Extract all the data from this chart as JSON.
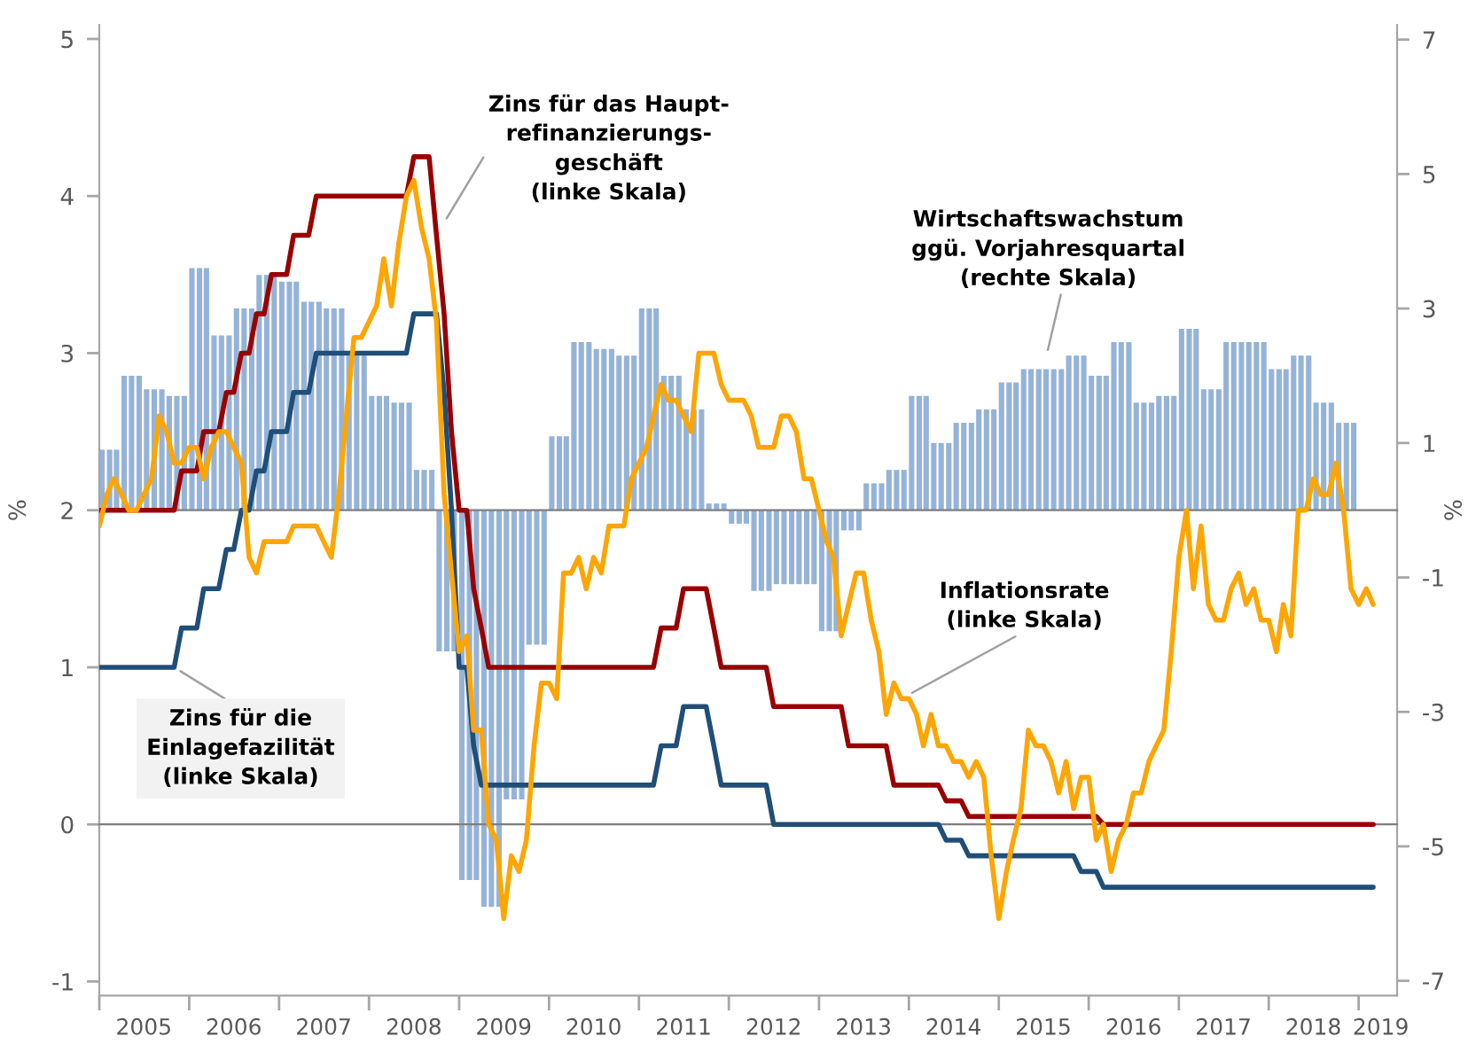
{
  "chart_data": {
    "type": "line",
    "x": [
      "2005-01",
      "2005-02",
      "2005-03",
      "2005-04",
      "2005-05",
      "2005-06",
      "2005-07",
      "2005-08",
      "2005-09",
      "2005-10",
      "2005-11",
      "2005-12",
      "2006-01",
      "2006-02",
      "2006-03",
      "2006-04",
      "2006-05",
      "2006-06",
      "2006-07",
      "2006-08",
      "2006-09",
      "2006-10",
      "2006-11",
      "2006-12",
      "2007-01",
      "2007-02",
      "2007-03",
      "2007-04",
      "2007-05",
      "2007-06",
      "2007-07",
      "2007-08",
      "2007-09",
      "2007-10",
      "2007-11",
      "2007-12",
      "2008-01",
      "2008-02",
      "2008-03",
      "2008-04",
      "2008-05",
      "2008-06",
      "2008-07",
      "2008-08",
      "2008-09",
      "2008-10",
      "2008-11",
      "2008-12",
      "2009-01",
      "2009-02",
      "2009-03",
      "2009-04",
      "2009-05",
      "2009-06",
      "2009-07",
      "2009-08",
      "2009-09",
      "2009-10",
      "2009-11",
      "2009-12",
      "2010-01",
      "2010-02",
      "2010-03",
      "2010-04",
      "2010-05",
      "2010-06",
      "2010-07",
      "2010-08",
      "2010-09",
      "2010-10",
      "2010-11",
      "2010-12",
      "2011-01",
      "2011-02",
      "2011-03",
      "2011-04",
      "2011-05",
      "2011-06",
      "2011-07",
      "2011-08",
      "2011-09",
      "2011-10",
      "2011-11",
      "2011-12",
      "2012-01",
      "2012-02",
      "2012-03",
      "2012-04",
      "2012-05",
      "2012-06",
      "2012-07",
      "2012-08",
      "2012-09",
      "2012-10",
      "2012-11",
      "2012-12",
      "2013-01",
      "2013-02",
      "2013-03",
      "2013-04",
      "2013-05",
      "2013-06",
      "2013-07",
      "2013-08",
      "2013-09",
      "2013-10",
      "2013-11",
      "2013-12",
      "2014-01",
      "2014-02",
      "2014-03",
      "2014-04",
      "2014-05",
      "2014-06",
      "2014-07",
      "2014-08",
      "2014-09",
      "2014-10",
      "2014-11",
      "2014-12",
      "2015-01",
      "2015-02",
      "2015-03",
      "2015-04",
      "2015-05",
      "2015-06",
      "2015-07",
      "2015-08",
      "2015-09",
      "2015-10",
      "2015-11",
      "2015-12",
      "2016-01",
      "2016-02",
      "2016-03",
      "2016-04",
      "2016-05",
      "2016-06",
      "2016-07",
      "2016-08",
      "2016-09",
      "2016-10",
      "2016-11",
      "2016-12",
      "2017-01",
      "2017-02",
      "2017-03",
      "2017-04",
      "2017-05",
      "2017-06",
      "2017-07",
      "2017-08",
      "2017-09",
      "2017-10",
      "2017-11",
      "2017-12",
      "2018-01",
      "2018-02",
      "2018-03",
      "2018-04",
      "2018-05",
      "2018-06",
      "2018-07",
      "2018-08",
      "2018-09",
      "2018-10",
      "2018-11",
      "2018-12",
      "2019-01",
      "2019-02",
      "2019-03"
    ],
    "series": [
      {
        "type": "bar",
        "axis": "y2",
        "name": "Wirtschaftswachstum\nggü. Vorjahresquartal\n(rechte Skala)",
        "color": "#95b3d7",
        "values": [
          0.9,
          0.9,
          0.9,
          2.0,
          2.0,
          2.0,
          1.8,
          1.8,
          1.8,
          1.7,
          1.7,
          1.7,
          3.6,
          3.6,
          3.6,
          2.6,
          2.6,
          2.6,
          3.0,
          3.0,
          3.0,
          3.5,
          3.5,
          3.5,
          3.4,
          3.4,
          3.4,
          3.1,
          3.1,
          3.1,
          3.0,
          3.0,
          3.0,
          2.3,
          2.3,
          2.3,
          1.7,
          1.7,
          1.7,
          1.6,
          1.6,
          1.6,
          0.6,
          0.6,
          0.6,
          -2.1,
          -2.1,
          -2.1,
          -5.5,
          -5.5,
          -5.5,
          -5.9,
          -5.9,
          -5.9,
          -4.3,
          -4.3,
          -4.3,
          -2.0,
          -2.0,
          -2.0,
          1.1,
          1.1,
          1.1,
          2.5,
          2.5,
          2.5,
          2.4,
          2.4,
          2.4,
          2.3,
          2.3,
          2.3,
          3.0,
          3.0,
          3.0,
          2.0,
          2.0,
          2.0,
          1.5,
          1.5,
          1.5,
          0.1,
          0.1,
          0.1,
          -0.2,
          -0.2,
          -0.2,
          -1.2,
          -1.2,
          -1.2,
          -1.1,
          -1.1,
          -1.1,
          -1.1,
          -1.1,
          -1.1,
          -1.8,
          -1.8,
          -1.8,
          -0.3,
          -0.3,
          -0.3,
          0.4,
          0.4,
          0.4,
          0.6,
          0.6,
          0.6,
          1.7,
          1.7,
          1.7,
          1.0,
          1.0,
          1.0,
          1.3,
          1.3,
          1.3,
          1.5,
          1.5,
          1.5,
          1.9,
          1.9,
          1.9,
          2.1,
          2.1,
          2.1,
          2.1,
          2.1,
          2.1,
          2.3,
          2.3,
          2.3,
          2.0,
          2.0,
          2.0,
          2.5,
          2.5,
          2.5,
          1.6,
          1.6,
          1.6,
          1.7,
          1.7,
          1.7,
          2.7,
          2.7,
          2.7,
          1.8,
          1.8,
          1.8,
          2.5,
          2.5,
          2.5,
          2.5,
          2.5,
          2.5,
          2.1,
          2.1,
          2.1,
          2.3,
          2.3,
          2.3,
          1.6,
          1.6,
          1.6,
          1.3,
          1.3,
          1.3,
          null,
          null,
          null
        ]
      },
      {
        "axis": "y",
        "name": "Zins für das Haupt-\nrefinanzierungs-\ngeschäft\n(linke Skala)",
        "color": "#990000",
        "values": [
          2,
          2,
          2,
          2,
          2,
          2,
          2,
          2,
          2,
          2,
          2,
          2.25,
          2.25,
          2.25,
          2.5,
          2.5,
          2.5,
          2.75,
          2.75,
          3,
          3,
          3.25,
          3.25,
          3.5,
          3.5,
          3.5,
          3.75,
          3.75,
          3.75,
          4,
          4,
          4,
          4,
          4,
          4,
          4,
          4,
          4,
          4,
          4,
          4,
          4,
          4.25,
          4.25,
          4.25,
          3.75,
          3.25,
          2.5,
          2,
          2,
          1.5,
          1.25,
          1,
          1,
          1,
          1,
          1,
          1,
          1,
          1,
          1,
          1,
          1,
          1,
          1,
          1,
          1,
          1,
          1,
          1,
          1,
          1,
          1,
          1,
          1,
          1.25,
          1.25,
          1.25,
          1.5,
          1.5,
          1.5,
          1.5,
          1.25,
          1,
          1,
          1,
          1,
          1,
          1,
          1,
          0.75,
          0.75,
          0.75,
          0.75,
          0.75,
          0.75,
          0.75,
          0.75,
          0.75,
          0.75,
          0.5,
          0.5,
          0.5,
          0.5,
          0.5,
          0.5,
          0.25,
          0.25,
          0.25,
          0.25,
          0.25,
          0.25,
          0.25,
          0.15,
          0.15,
          0.15,
          0.05,
          0.05,
          0.05,
          0.05,
          0.05,
          0.05,
          0.05,
          0.05,
          0.05,
          0.05,
          0.05,
          0.05,
          0.05,
          0.05,
          0.05,
          0.05,
          0.05,
          0.05,
          0,
          0,
          0,
          0,
          0,
          0,
          0,
          0,
          0,
          0,
          0,
          0,
          0,
          0,
          0,
          0,
          0,
          0,
          0,
          0,
          0,
          0,
          0,
          0,
          0,
          0,
          0,
          0,
          0,
          0,
          0,
          0,
          0,
          0,
          0,
          0,
          0
        ]
      },
      {
        "axis": "y",
        "name": "Zins für die\nEinlagefazilität\n(linke Skala)",
        "color": "#1f4e79",
        "values": [
          1,
          1,
          1,
          1,
          1,
          1,
          1,
          1,
          1,
          1,
          1,
          1.25,
          1.25,
          1.25,
          1.5,
          1.5,
          1.5,
          1.75,
          1.75,
          2,
          2,
          2.25,
          2.25,
          2.5,
          2.5,
          2.5,
          2.75,
          2.75,
          2.75,
          3,
          3,
          3,
          3,
          3,
          3,
          3,
          3,
          3,
          3,
          3,
          3,
          3,
          3.25,
          3.25,
          3.25,
          3.25,
          2.75,
          2,
          1,
          1,
          0.5,
          0.25,
          0.25,
          0.25,
          0.25,
          0.25,
          0.25,
          0.25,
          0.25,
          0.25,
          0.25,
          0.25,
          0.25,
          0.25,
          0.25,
          0.25,
          0.25,
          0.25,
          0.25,
          0.25,
          0.25,
          0.25,
          0.25,
          0.25,
          0.25,
          0.5,
          0.5,
          0.5,
          0.75,
          0.75,
          0.75,
          0.75,
          0.5,
          0.25,
          0.25,
          0.25,
          0.25,
          0.25,
          0.25,
          0.25,
          0,
          0,
          0,
          0,
          0,
          0,
          0,
          0,
          0,
          0,
          0,
          0,
          0,
          0,
          0,
          0,
          0,
          0,
          0,
          0,
          0,
          0,
          0,
          -0.1,
          -0.1,
          -0.1,
          -0.2,
          -0.2,
          -0.2,
          -0.2,
          -0.2,
          -0.2,
          -0.2,
          -0.2,
          -0.2,
          -0.2,
          -0.2,
          -0.2,
          -0.2,
          -0.2,
          -0.2,
          -0.3,
          -0.3,
          -0.3,
          -0.4,
          -0.4,
          -0.4,
          -0.4,
          -0.4,
          -0.4,
          -0.4,
          -0.4,
          -0.4,
          -0.4,
          -0.4,
          -0.4,
          -0.4,
          -0.4,
          -0.4,
          -0.4,
          -0.4,
          -0.4,
          -0.4,
          -0.4,
          -0.4,
          -0.4,
          -0.4,
          -0.4,
          -0.4,
          -0.4,
          -0.4,
          -0.4,
          -0.4,
          -0.4,
          -0.4,
          -0.4,
          -0.4,
          -0.4,
          -0.4,
          -0.4,
          -0.4
        ]
      },
      {
        "axis": "y",
        "name": "Inflationsrate\n(linke Skala)",
        "color": "#ffa500",
        "values": [
          1.9,
          2.1,
          2.2,
          2.1,
          2.0,
          2.0,
          2.1,
          2.2,
          2.6,
          2.5,
          2.3,
          2.3,
          2.4,
          2.4,
          2.2,
          2.4,
          2.5,
          2.5,
          2.4,
          2.3,
          1.7,
          1.6,
          1.8,
          1.8,
          1.8,
          1.8,
          1.9,
          1.9,
          1.9,
          1.9,
          1.8,
          1.7,
          2.1,
          2.6,
          3.1,
          3.1,
          3.2,
          3.3,
          3.6,
          3.3,
          3.7,
          4.0,
          4.1,
          3.8,
          3.6,
          3.2,
          2.1,
          1.6,
          1.1,
          1.2,
          0.6,
          0.6,
          0.0,
          -0.1,
          -0.6,
          -0.2,
          -0.3,
          -0.1,
          0.5,
          0.9,
          0.9,
          0.8,
          1.6,
          1.6,
          1.7,
          1.5,
          1.7,
          1.6,
          1.9,
          1.9,
          1.9,
          2.2,
          2.3,
          2.4,
          2.6,
          2.8,
          2.7,
          2.7,
          2.6,
          2.5,
          3.0,
          3.0,
          3.0,
          2.8,
          2.7,
          2.7,
          2.7,
          2.6,
          2.4,
          2.4,
          2.4,
          2.6,
          2.6,
          2.5,
          2.2,
          2.2,
          2.0,
          1.8,
          1.7,
          1.2,
          1.4,
          1.6,
          1.6,
          1.3,
          1.1,
          0.7,
          0.9,
          0.8,
          0.8,
          0.7,
          0.5,
          0.7,
          0.5,
          0.5,
          0.4,
          0.4,
          0.3,
          0.4,
          0.3,
          -0.2,
          -0.6,
          -0.3,
          -0.1,
          0.1,
          0.6,
          0.5,
          0.5,
          0.4,
          0.2,
          0.4,
          0.1,
          0.3,
          0.3,
          -0.1,
          0.0,
          -0.3,
          -0.1,
          0.0,
          0.2,
          0.2,
          0.4,
          0.5,
          0.6,
          1.1,
          1.7,
          2.0,
          1.5,
          1.9,
          1.4,
          1.3,
          1.3,
          1.5,
          1.6,
          1.4,
          1.5,
          1.3,
          1.3,
          1.1,
          1.4,
          1.2,
          2.0,
          2.0,
          2.2,
          2.1,
          2.1,
          2.3,
          2.0,
          1.5,
          1.4,
          1.5,
          1.4
        ]
      }
    ],
    "xlim": [
      "2005-01",
      "2019-06-06"
    ],
    "xticks": [
      {
        "value": "2005-01",
        "label": null
      },
      {
        "value": "2006-01",
        "label": null
      },
      {
        "value": "2007-01",
        "label": null
      },
      {
        "value": "2008-01",
        "label": null
      },
      {
        "value": "2009-01",
        "label": null
      },
      {
        "value": "2010-01",
        "label": null
      },
      {
        "value": "2011-01",
        "label": null
      },
      {
        "value": "2012-01",
        "label": null
      },
      {
        "value": "2013-01",
        "label": null
      },
      {
        "value": "2014-01",
        "label": null
      },
      {
        "value": "2015-01",
        "label": null
      },
      {
        "value": "2016-01",
        "label": null
      },
      {
        "value": "2017-01",
        "label": null
      },
      {
        "value": "2018-01",
        "label": null
      },
      {
        "value": "2019-01",
        "label": null
      },
      {
        "value": "2005-07",
        "label": "2005"
      },
      {
        "value": "2006-07",
        "label": "2006"
      },
      {
        "value": "2007-07",
        "label": "2007"
      },
      {
        "value": "2008-07",
        "label": "2008"
      },
      {
        "value": "2009-07",
        "label": "2009"
      },
      {
        "value": "2010-07",
        "label": "2010"
      },
      {
        "value": "2011-07",
        "label": "2011"
      },
      {
        "value": "2012-07",
        "label": "2012"
      },
      {
        "value": "2013-07",
        "label": "2013"
      },
      {
        "value": "2014-07",
        "label": "2014"
      },
      {
        "value": "2015-07",
        "label": "2015"
      },
      {
        "value": "2016-07",
        "label": "2016"
      },
      {
        "value": "2017-07",
        "label": "2017"
      },
      {
        "value": "2018-07",
        "label": "2018"
      },
      {
        "value": "2019-04",
        "label": "2019"
      }
    ],
    "ylim": [
      -1.09,
      5.09
    ],
    "yticks": [
      -1,
      0,
      1,
      2,
      3,
      4,
      5
    ],
    "y2lim": [
      -7.22,
      7.22
    ],
    "y2ticks": [
      -7,
      -5,
      -3,
      -1,
      1,
      3,
      5,
      7
    ],
    "ylabel": "%",
    "y2label": "%"
  }
}
